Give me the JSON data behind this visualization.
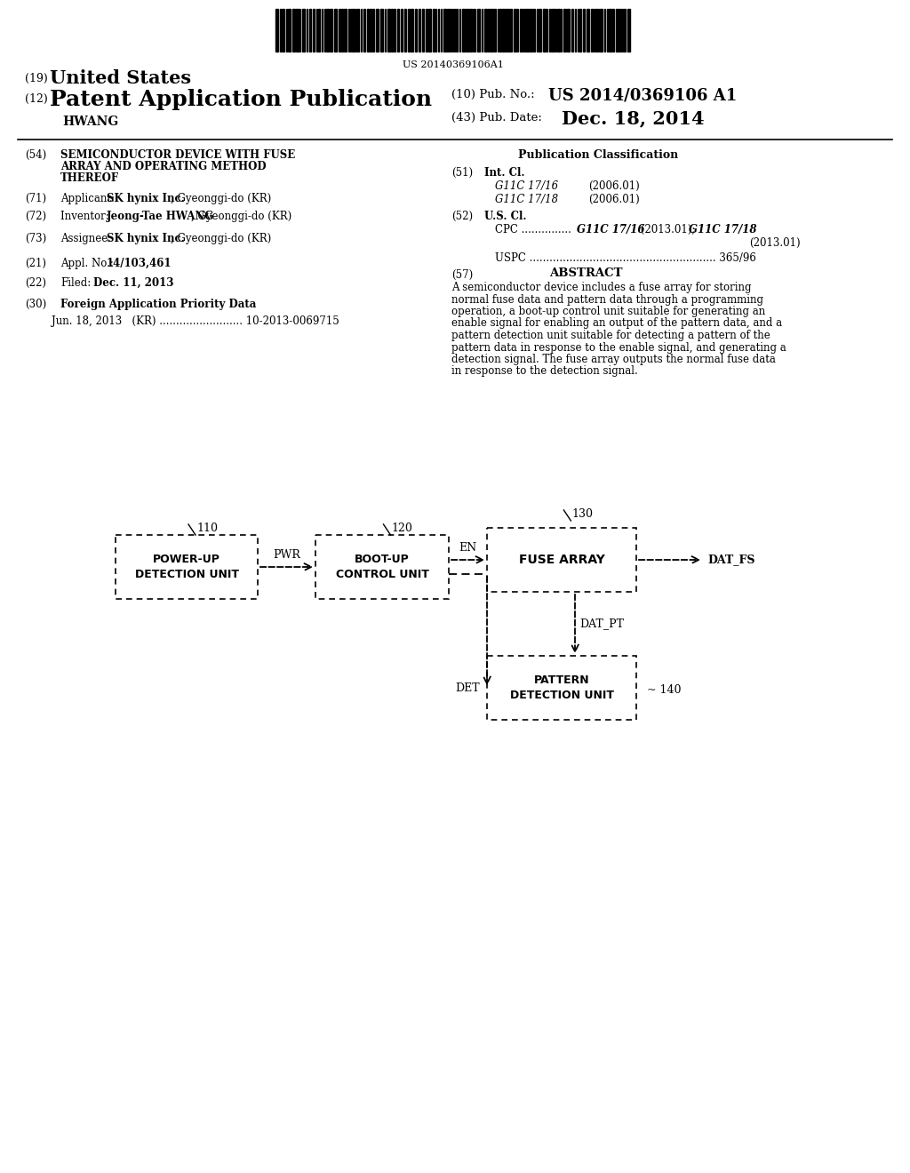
{
  "bg_color": "#ffffff",
  "barcode_text": "US 20140369106A1",
  "title_19_small": "(19)",
  "title_19_large": "United States",
  "title_12_small": "(12)",
  "title_12_large": "Patent Application Publication",
  "title_hwang": "HWANG",
  "pub_no_label": "(10) Pub. No.:",
  "pub_no_val": "US 2014/0369106 A1",
  "pub_date_label": "(43) Pub. Date:",
  "pub_date_val": "Dec. 18, 2014",
  "abstract_text_lines": [
    "A semiconductor device includes a fuse array for storing",
    "normal fuse data and pattern data through a programming",
    "operation, a boot-up control unit suitable for generating an",
    "enable signal for enabling an output of the pattern data, and a",
    "pattern detection unit suitable for detecting a pattern of the",
    "pattern data in response to the enable signal, and generating a",
    "detection signal. The fuse array outputs the normal fuse data",
    "in response to the detection signal."
  ],
  "diagram_box1_label": "110",
  "diagram_box1_text": "POWER-UP\nDETECTION UNIT",
  "diagram_box2_label": "120",
  "diagram_box2_text": "BOOT-UP\nCONTROL UNIT",
  "diagram_box3_label": "130",
  "diagram_box3_text": "FUSE ARRAY",
  "diagram_box4_label": "140",
  "diagram_box4_text": "PATTERN\nDETECTION UNIT",
  "arrow1_label": "PWR",
  "arrow2_label": "EN",
  "arrow3_label": "DAT_FS",
  "arrow4_label": "DAT_PT",
  "arrow5_label": "DET"
}
